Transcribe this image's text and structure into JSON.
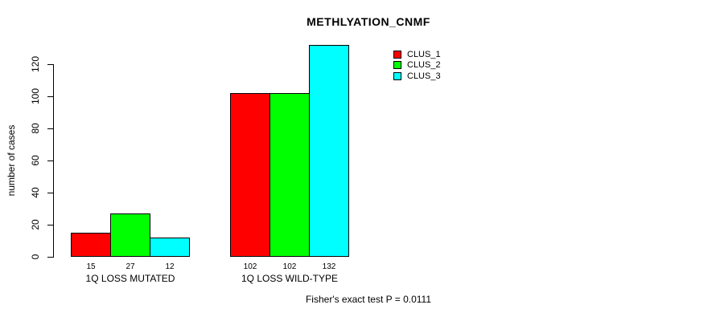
{
  "chart_data": {
    "type": "bar",
    "title": "METHLYATION_CNMF",
    "categories": [
      "1Q LOSS MUTATED",
      "1Q LOSS WILD-TYPE"
    ],
    "series": [
      {
        "name": "CLUS_1",
        "color": "#ff0000",
        "values": [
          15,
          102
        ]
      },
      {
        "name": "CLUS_2",
        "color": "#00ff00",
        "values": [
          27,
          102
        ]
      },
      {
        "name": "CLUS_3",
        "color": "#00ffff",
        "values": [
          12,
          132
        ]
      }
    ],
    "bar_value_labels": [
      [
        "15",
        "27",
        "12"
      ],
      [
        "102",
        "102",
        "132"
      ]
    ],
    "xlabel": "",
    "ylabel": "number of cases",
    "ylim": [
      0,
      120
    ],
    "yticks": [
      "0",
      "20",
      "40",
      "60",
      "80",
      "100",
      "120"
    ],
    "grid": false,
    "legend_position": "top-right",
    "annotation": "Fisher's exact test P = 0.0111"
  }
}
